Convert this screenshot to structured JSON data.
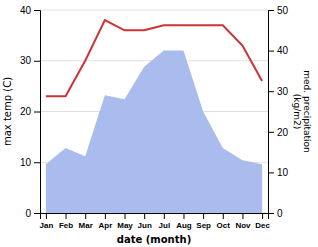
{
  "chart_data": {
    "type": "line",
    "xlabel": "date (month)",
    "ylabel": "max temp (C)",
    "y2label": "med. precipitation\n(kg/m2)",
    "categories": [
      "Jan",
      "Feb",
      "Mar",
      "Apr",
      "May",
      "Jun",
      "Jul",
      "Aug",
      "Sep",
      "Oct",
      "Nov",
      "Dec"
    ],
    "series": [
      {
        "type": "area",
        "axis": "y2",
        "color": "#aabbee",
        "values": [
          12,
          16,
          14,
          29,
          28,
          36,
          40,
          40,
          25,
          16,
          13,
          12
        ]
      },
      {
        "type": "line",
        "color": "#cc3333",
        "values": [
          23,
          23,
          30,
          38,
          36,
          36,
          37,
          37,
          37,
          37,
          33,
          26
        ]
      }
    ],
    "ylim": [
      0,
      40
    ],
    "yticks": [
      0,
      10,
      20,
      30,
      40
    ],
    "y2lim": [
      0,
      50
    ],
    "y2ticks": [
      0,
      10,
      20,
      30,
      40,
      50
    ],
    "grid": true
  }
}
